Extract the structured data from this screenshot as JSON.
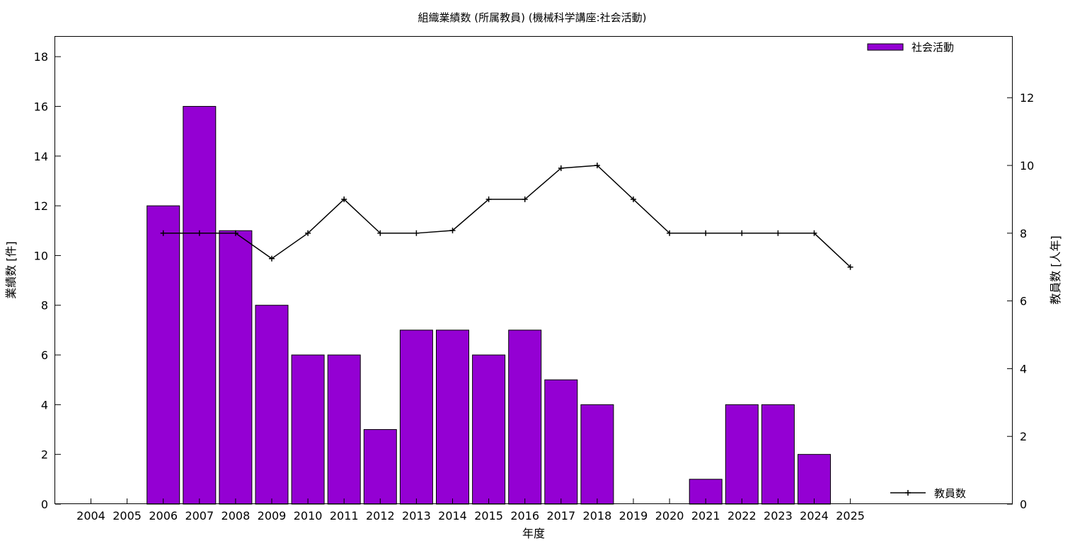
{
  "chart_data": {
    "type": "bar",
    "title": "組織業績数 (所属教員) (機械科学講座:社会活動)",
    "xlabel": "年度",
    "ylabel": "業績数 [件]",
    "y2label": "教員数 [人年]",
    "categories": [
      "2004",
      "2005",
      "2006",
      "2007",
      "2008",
      "2009",
      "2010",
      "2011",
      "2012",
      "2013",
      "2014",
      "2015",
      "2016",
      "2017",
      "2018",
      "2019",
      "2020",
      "2021",
      "2022",
      "2023",
      "2024",
      "2025"
    ],
    "ylim": [
      0,
      18.8
    ],
    "y2lim": [
      0,
      13.8
    ],
    "yticks": [
      0,
      2,
      4,
      6,
      8,
      10,
      12,
      14,
      16,
      18
    ],
    "y2ticks": [
      0,
      2,
      4,
      6,
      8,
      10,
      12
    ],
    "grid": false,
    "series": [
      {
        "name": "社会活動",
        "type": "bar",
        "axis": "left",
        "color": "#9400d3",
        "values": [
          0,
          0,
          12,
          16,
          11,
          8,
          6,
          6,
          3,
          7,
          7,
          6,
          7,
          5,
          4,
          0,
          0,
          1,
          4,
          4,
          2,
          0
        ]
      },
      {
        "name": "教員数",
        "type": "line",
        "axis": "right",
        "color": "#000000",
        "marker": "plus",
        "x": [
          "2006",
          "2007",
          "2008",
          "2009",
          "2010",
          "2011",
          "2012",
          "2013",
          "2014",
          "2015",
          "2016",
          "2017",
          "2018",
          "2019",
          "2020",
          "2021",
          "2022",
          "2023",
          "2024",
          "2025"
        ],
        "values": [
          8,
          8,
          8,
          7.25,
          8,
          9,
          8,
          8,
          8.08,
          9,
          9,
          9.92,
          10,
          9,
          8,
          8,
          8,
          8,
          8,
          7
        ]
      }
    ],
    "legend": [
      {
        "label": "社会活動",
        "position": "top-right"
      },
      {
        "label": "教員数",
        "position": "bottom-right"
      }
    ]
  }
}
